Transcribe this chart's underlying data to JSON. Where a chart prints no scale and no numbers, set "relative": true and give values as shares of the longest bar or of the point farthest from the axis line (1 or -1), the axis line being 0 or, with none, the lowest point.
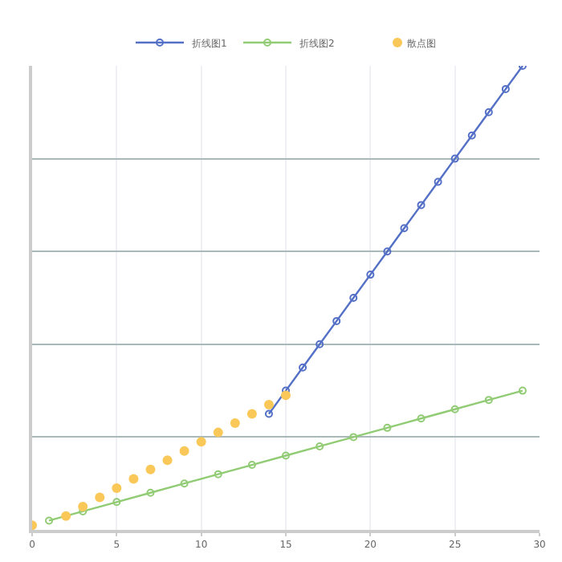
{
  "chart_data": {
    "type": "line",
    "relative": true,
    "xlim": [
      0,
      30
    ],
    "xticks": [
      0,
      5,
      10,
      15,
      20,
      25,
      30
    ],
    "grid": true,
    "legend": "top",
    "marker": "circle",
    "series": [
      {
        "name": "折线图1",
        "color": "#5470c6",
        "x": [
          14,
          15,
          16,
          17,
          18,
          19,
          20,
          21,
          22,
          23,
          24,
          25,
          26,
          27,
          28,
          29
        ],
        "values": [
          0.25,
          0.3,
          0.35,
          0.4,
          0.45,
          0.5,
          0.55,
          0.6,
          0.65,
          0.7,
          0.75,
          0.8,
          0.85,
          0.9,
          0.95,
          1.0
        ]
      },
      {
        "name": "折线图2",
        "color": "#91cc75",
        "x": [
          1,
          3,
          5,
          7,
          9,
          11,
          13,
          15,
          17,
          19,
          21,
          23,
          25,
          27,
          29
        ],
        "values": [
          0.02,
          0.04,
          0.06,
          0.08,
          0.1,
          0.12,
          0.14,
          0.16,
          0.18,
          0.2,
          0.22,
          0.24,
          0.26,
          0.28,
          0.3
        ]
      },
      {
        "name": "散点图",
        "type": "scatter",
        "color": "#fac858",
        "x": [
          0,
          2,
          3,
          4,
          5,
          6,
          7,
          8,
          9,
          10,
          11,
          12,
          13,
          14,
          15
        ],
        "values": [
          0.01,
          0.03,
          0.05,
          0.07,
          0.09,
          0.11,
          0.13,
          0.15,
          0.17,
          0.19,
          0.21,
          0.23,
          0.25,
          0.27,
          0.29
        ]
      }
    ]
  }
}
